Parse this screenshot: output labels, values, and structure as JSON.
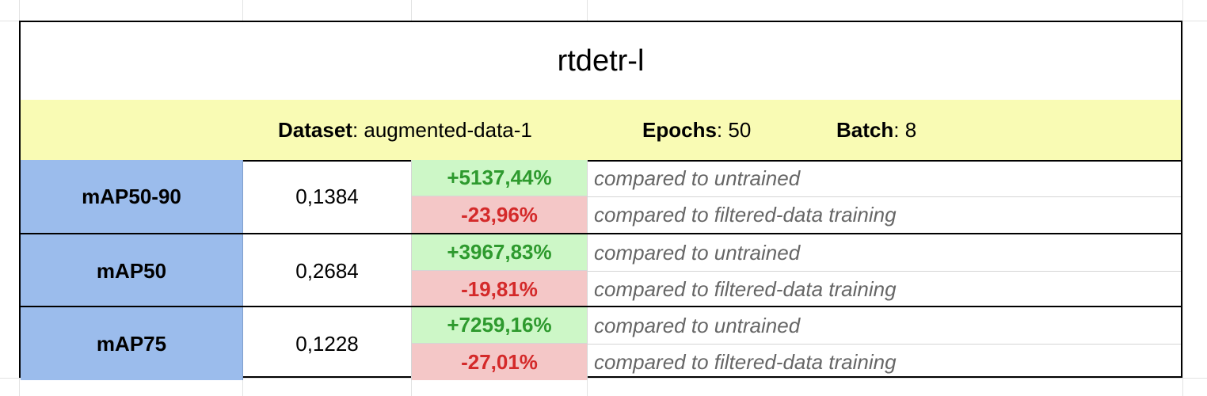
{
  "title": "rtdetr-l",
  "info": {
    "dataset_label": "Dataset",
    "dataset_value": "augmented-data-1",
    "epochs_label": "Epochs",
    "epochs_value": "50",
    "batch_label": "Batch",
    "batch_value": "8",
    "separator": ": "
  },
  "metrics": [
    {
      "name": "mAP50-90",
      "value": "0,1384",
      "vs_untrained": "+5137,44%",
      "vs_filtered": "-23,96%",
      "note_untrained": "compared to untrained",
      "note_filtered": "compared to filtered-data training"
    },
    {
      "name": "mAP50",
      "value": "0,2684",
      "vs_untrained": "+3967,83%",
      "vs_filtered": "-19,81%",
      "note_untrained": "compared to untrained",
      "note_filtered": "compared to filtered-data training"
    },
    {
      "name": "mAP75",
      "value": "0,1228",
      "vs_untrained": "+7259,16%",
      "vs_filtered": "-27,01%",
      "note_untrained": "compared to untrained",
      "note_filtered": "compared to filtered-data training"
    }
  ],
  "colors": {
    "info_row_bg": "#f9fbb4",
    "metric_name_bg": "#9bbcec",
    "positive_bg": "#cdf7c7",
    "positive_text": "#2e9a2e",
    "negative_bg": "#f4c7c7",
    "negative_text": "#d42a2a",
    "note_text": "#666666"
  }
}
